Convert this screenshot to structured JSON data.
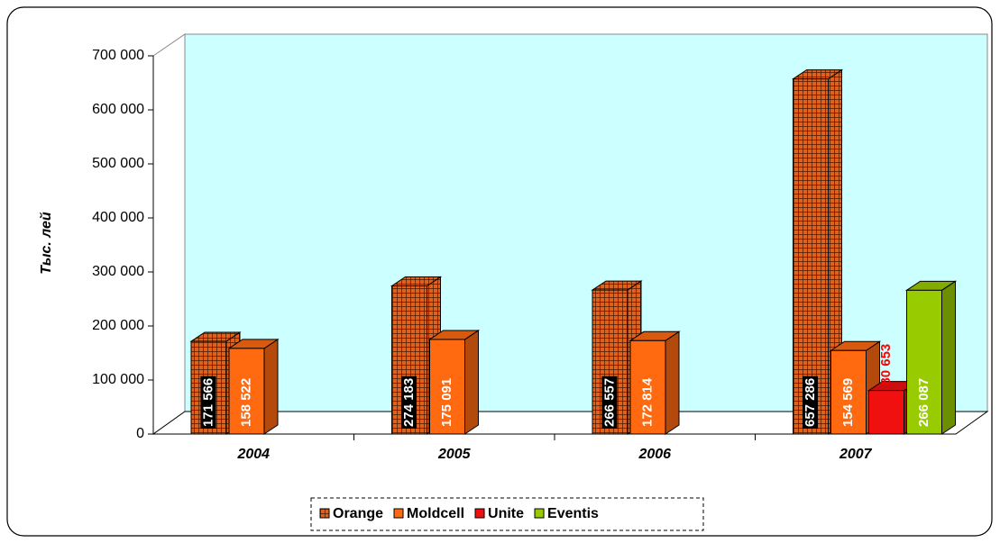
{
  "chart_data": {
    "type": "bar3d",
    "y_label": "Тыс. лей",
    "categories": [
      "2004",
      "2005",
      "2006",
      "2007"
    ],
    "series": [
      {
        "name": "Orange",
        "color": "#c84b10",
        "pattern": "checkered",
        "values": [
          171566,
          274183,
          266557,
          657286
        ],
        "value_labels": [
          "171 566",
          "274 183",
          "266 557",
          "657 286"
        ]
      },
      {
        "name": "Moldcell",
        "color": "#ff6a10",
        "values": [
          158522,
          175091,
          172814,
          154569
        ],
        "value_labels": [
          "158 522",
          "175 091",
          "172 814",
          "154 569"
        ]
      },
      {
        "name": "Unite",
        "color": "#f01010",
        "values": [
          null,
          null,
          null,
          80653
        ],
        "value_labels": [
          null,
          null,
          null,
          "80 653"
        ]
      },
      {
        "name": "Eventis",
        "color": "#99cc00",
        "values": [
          null,
          null,
          null,
          266087
        ],
        "value_labels": [
          null,
          null,
          null,
          "266 087"
        ]
      }
    ],
    "ylim": [
      0,
      700000
    ],
    "yticks": [
      0,
      {
        "value": 100000,
        "label": "100 000"
      },
      {
        "value": 200000,
        "label": "200 000"
      },
      {
        "value": 300000,
        "label": "300 000"
      },
      {
        "value": 400000,
        "label": "400 000"
      },
      {
        "value": 500000,
        "label": "500 000"
      },
      {
        "value": 600000,
        "label": "600 000"
      },
      {
        "value": 700000,
        "label": "700 000"
      }
    ],
    "legend": "bottom"
  }
}
